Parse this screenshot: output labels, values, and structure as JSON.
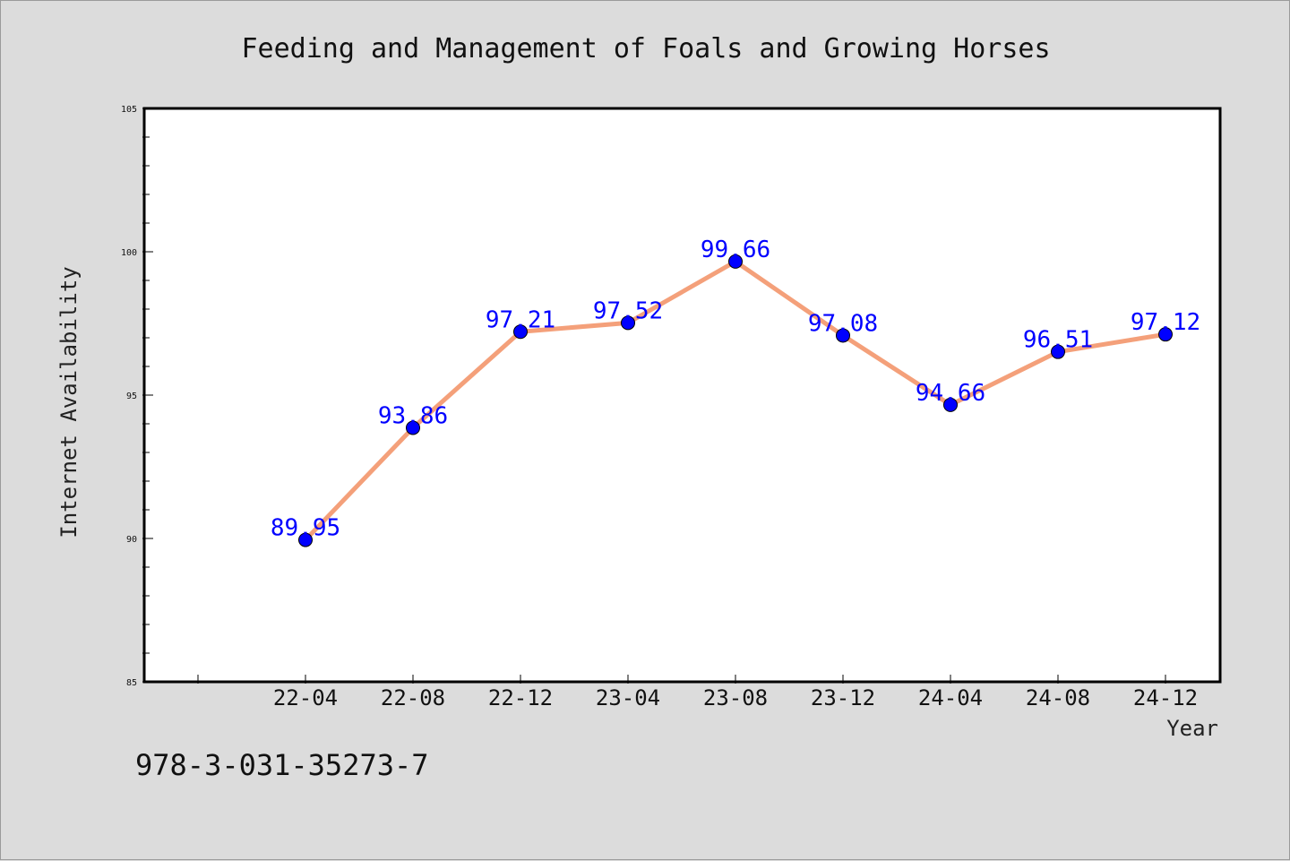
{
  "chart_data": {
    "type": "line",
    "title": "Feeding and Management of Foals and Growing Horses",
    "xlabel": "Year",
    "ylabel": "Internet Availability",
    "categories": [
      "22-04",
      "22-08",
      "22-12",
      "23-04",
      "23-08",
      "23-12",
      "24-04",
      "24-08",
      "24-12"
    ],
    "series": [
      {
        "values": [
          89.95,
          93.86,
          97.21,
          97.52,
          99.66,
          97.08,
          94.66,
          96.51,
          97.12
        ],
        "line_color": "#f4a07a",
        "marker_color": "#0000ff"
      }
    ],
    "ylim": [
      85,
      105
    ],
    "yticks": [
      85,
      90,
      95,
      100,
      105
    ],
    "y_minor_step": 1,
    "grid": false,
    "legend": "none"
  },
  "footer": {
    "isbn": "978-3-031-35273-7"
  }
}
